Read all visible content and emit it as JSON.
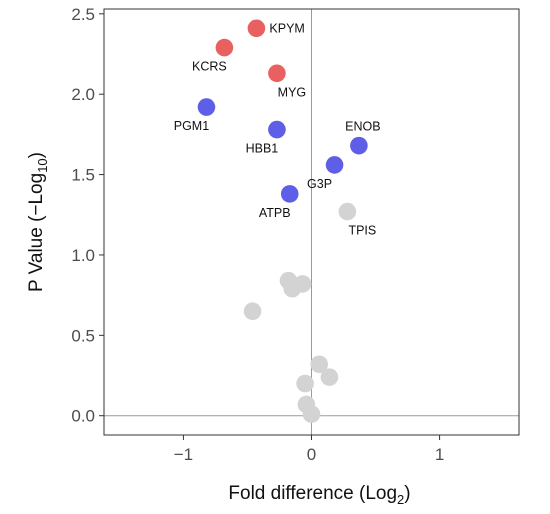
{
  "chart_data": {
    "type": "scatter",
    "xlabel": {
      "main": "Fold difference (Log",
      "sub": "2",
      "tail": ")"
    },
    "ylabel": {
      "main": "P Value (−Log",
      "sub": "10",
      "tail": ")"
    },
    "xlim": [
      -1.62,
      1.62
    ],
    "ylim": [
      -0.12,
      2.53
    ],
    "xticks": [
      -1,
      0,
      1
    ],
    "xtick_labels": [
      "−1",
      "0",
      "1"
    ],
    "yticks": [
      0.0,
      0.5,
      1.0,
      1.5,
      2.0,
      2.5
    ],
    "ytick_labels": [
      "0.0",
      "0.5",
      "1.0",
      "1.5",
      "2.0",
      "2.5"
    ],
    "reference_lines": {
      "x": 0,
      "y": 0
    },
    "grid": false,
    "colors": {
      "red": "#e96060",
      "blue": "#5e5ee6",
      "gray": "#d3d3d3"
    },
    "points": [
      {
        "label": "KPYM",
        "x": -0.43,
        "y": 2.41,
        "color": "red",
        "label_pos": "right"
      },
      {
        "label": "KCRS",
        "x": -0.68,
        "y": 2.29,
        "color": "red",
        "label_pos": "below-left"
      },
      {
        "label": "MYG",
        "x": -0.27,
        "y": 2.13,
        "color": "red",
        "label_pos": "below-right"
      },
      {
        "label": "PGM1",
        "x": -0.82,
        "y": 1.92,
        "color": "blue",
        "label_pos": "below-left"
      },
      {
        "label": "HBB1",
        "x": -0.27,
        "y": 1.78,
        "color": "blue",
        "label_pos": "below-left"
      },
      {
        "label": "ENOB",
        "x": 0.37,
        "y": 1.68,
        "color": "blue",
        "label_pos": "above"
      },
      {
        "label": "G3P",
        "x": 0.18,
        "y": 1.56,
        "color": "blue",
        "label_pos": "below-left"
      },
      {
        "label": "ATPB",
        "x": -0.17,
        "y": 1.38,
        "color": "blue",
        "label_pos": "below-left"
      },
      {
        "label": "TPIS",
        "x": 0.28,
        "y": 1.27,
        "color": "gray",
        "label_pos": "below-right"
      },
      {
        "label": "",
        "x": -0.18,
        "y": 0.84,
        "color": "gray"
      },
      {
        "label": "",
        "x": -0.07,
        "y": 0.82,
        "color": "gray"
      },
      {
        "label": "",
        "x": -0.15,
        "y": 0.79,
        "color": "gray"
      },
      {
        "label": "",
        "x": -0.46,
        "y": 0.65,
        "color": "gray"
      },
      {
        "label": "",
        "x": 0.06,
        "y": 0.32,
        "color": "gray"
      },
      {
        "label": "",
        "x": 0.14,
        "y": 0.24,
        "color": "gray"
      },
      {
        "label": "",
        "x": -0.05,
        "y": 0.2,
        "color": "gray"
      },
      {
        "label": "",
        "x": -0.04,
        "y": 0.07,
        "color": "gray"
      },
      {
        "label": "",
        "x": 0.0,
        "y": 0.01,
        "color": "gray"
      }
    ]
  }
}
